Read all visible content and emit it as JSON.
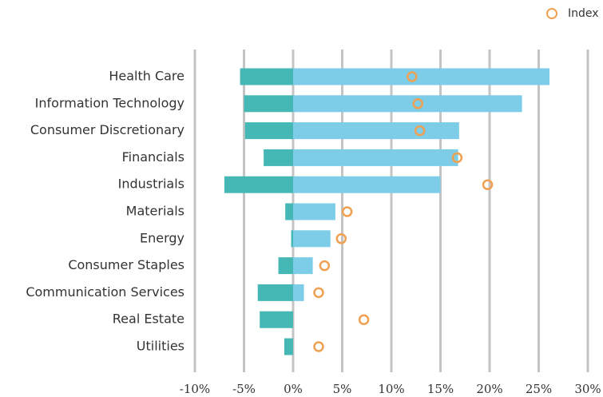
{
  "chart_data": {
    "type": "bar",
    "orientation": "horizontal",
    "categories": [
      "Health Care",
      "Information Technology",
      "Consumer Discretionary",
      "Financials",
      "Industrials",
      "Materials",
      "Energy",
      "Consumer Staples",
      "Communication Services",
      "Real Estate",
      "Utilities"
    ],
    "series": [
      {
        "color": "#45b8b5",
        "values": [
          -5.4,
          -5.0,
          -4.9,
          -3.0,
          -7.0,
          -0.8,
          -0.2,
          -1.5,
          -3.6,
          -3.4,
          -0.9
        ]
      },
      {
        "color": "#7dcde8",
        "values": [
          26.1,
          23.3,
          16.9,
          16.8,
          15.0,
          4.3,
          3.8,
          2.0,
          1.1,
          0,
          0
        ]
      },
      {
        "name": "Index",
        "color": "#f0a050",
        "marker": "circle",
        "values": [
          12.1,
          12.7,
          12.9,
          16.7,
          19.8,
          5.5,
          4.9,
          3.2,
          2.6,
          7.2,
          2.6
        ]
      }
    ],
    "xlim": [
      -10,
      30
    ],
    "xticks": [
      {
        "value": -10,
        "label": "-10%"
      },
      {
        "value": -5,
        "label": "-5%"
      },
      {
        "value": 0,
        "label": "0%"
      },
      {
        "value": 5,
        "label": "5%"
      },
      {
        "value": 10,
        "label": "10%"
      },
      {
        "value": 15,
        "label": "15%"
      },
      {
        "value": 20,
        "label": "20%"
      },
      {
        "value": 25,
        "label": "25%"
      },
      {
        "value": 30,
        "label": "30%"
      }
    ],
    "grid": true,
    "legend": "top-right"
  }
}
